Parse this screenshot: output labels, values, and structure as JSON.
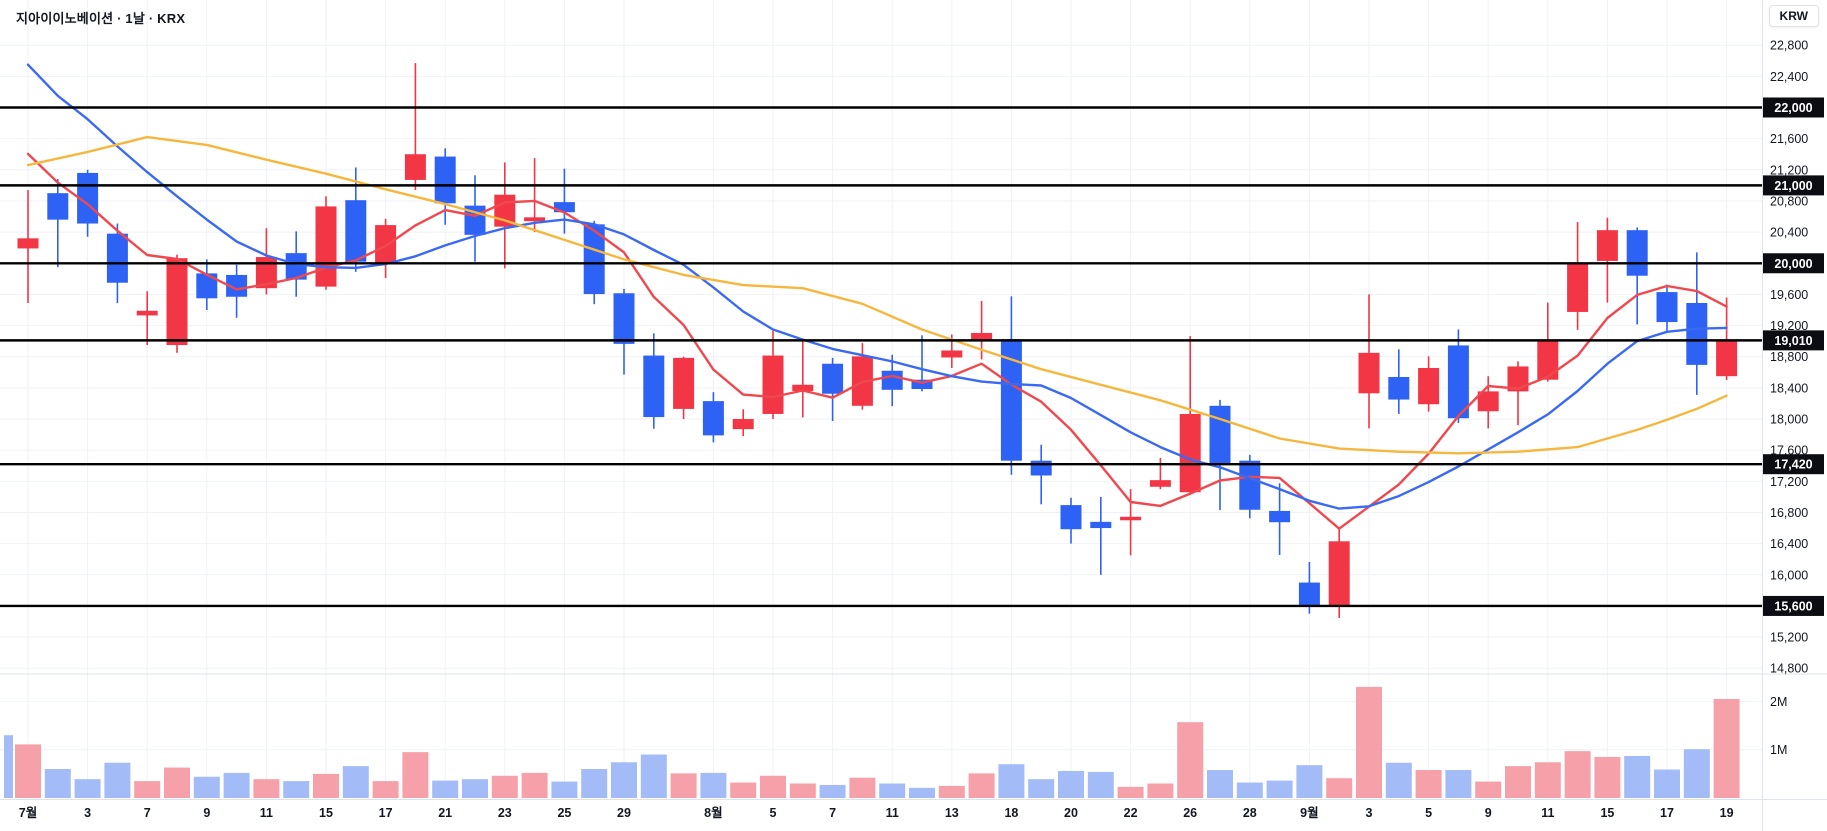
{
  "header": {
    "title": "지아이이노베이션 · 1날 · KRX"
  },
  "axis": {
    "currency_badge": "KRW",
    "price_labels": [
      {
        "value": 22800,
        "label": "22,800",
        "badge": false
      },
      {
        "value": 22400,
        "label": "22,400",
        "badge": false
      },
      {
        "value": 22000,
        "label": "22,000",
        "badge": true
      },
      {
        "value": 21600,
        "label": "21,600",
        "badge": false
      },
      {
        "value": 21200,
        "label": "21,200",
        "badge": false
      },
      {
        "value": 21000,
        "label": "21,000",
        "badge": true
      },
      {
        "value": 20800,
        "label": "20,800",
        "badge": false
      },
      {
        "value": 20400,
        "label": "20,400",
        "badge": false
      },
      {
        "value": 20000,
        "label": "20,000",
        "badge": true
      },
      {
        "value": 19600,
        "label": "19,600",
        "badge": false
      },
      {
        "value": 19200,
        "label": "19,200",
        "badge": false
      },
      {
        "value": 19010,
        "label": "19,010",
        "badge": true
      },
      {
        "value": 18800,
        "label": "18,800",
        "badge": false
      },
      {
        "value": 18400,
        "label": "18,400",
        "badge": false
      },
      {
        "value": 18000,
        "label": "18,000",
        "badge": false
      },
      {
        "value": 17600,
        "label": "17,600",
        "badge": false
      },
      {
        "value": 17420,
        "label": "17,420",
        "badge": true
      },
      {
        "value": 17200,
        "label": "17,200",
        "badge": false
      },
      {
        "value": 16800,
        "label": "16,800",
        "badge": false
      },
      {
        "value": 16400,
        "label": "16,400",
        "badge": false
      },
      {
        "value": 16000,
        "label": "16,000",
        "badge": false
      },
      {
        "value": 15600,
        "label": "15,600",
        "badge": true
      },
      {
        "value": 15200,
        "label": "15,200",
        "badge": false
      },
      {
        "value": 14800,
        "label": "14,800",
        "badge": false
      }
    ],
    "volume_labels": [
      {
        "label": "2M",
        "value": 2
      },
      {
        "label": "1M",
        "value": 1
      }
    ]
  },
  "chart_data": {
    "type": "candlestick",
    "title": "지아이이노베이션 1날 KRX",
    "price_currency": "KRW",
    "horizontal_levels": [
      22000,
      21000,
      20000,
      19010,
      17420,
      15600
    ],
    "last_price": 19010,
    "x_ticks": [
      {
        "i": 0,
        "label": "7월"
      },
      {
        "i": 2,
        "label": "3"
      },
      {
        "i": 4,
        "label": "7"
      },
      {
        "i": 6,
        "label": "9"
      },
      {
        "i": 8,
        "label": "11"
      },
      {
        "i": 10,
        "label": "15"
      },
      {
        "i": 12,
        "label": "17"
      },
      {
        "i": 14,
        "label": "21"
      },
      {
        "i": 16,
        "label": "23"
      },
      {
        "i": 18,
        "label": "25"
      },
      {
        "i": 20,
        "label": "29"
      },
      {
        "i": 23,
        "label": "8월"
      },
      {
        "i": 25,
        "label": "5"
      },
      {
        "i": 27,
        "label": "7"
      },
      {
        "i": 29,
        "label": "11"
      },
      {
        "i": 31,
        "label": "13"
      },
      {
        "i": 33,
        "label": "18"
      },
      {
        "i": 35,
        "label": "20"
      },
      {
        "i": 37,
        "label": "22"
      },
      {
        "i": 39,
        "label": "26"
      },
      {
        "i": 41,
        "label": "28"
      },
      {
        "i": 43,
        "label": "9월"
      },
      {
        "i": 45,
        "label": "3"
      },
      {
        "i": 47,
        "label": "5"
      },
      {
        "i": 49,
        "label": "9"
      },
      {
        "i": 51,
        "label": "11"
      },
      {
        "i": 53,
        "label": "15"
      },
      {
        "i": 55,
        "label": "17"
      },
      {
        "i": 57,
        "label": "19"
      }
    ],
    "candles_format": [
      "open",
      "high",
      "low",
      "close",
      "volume_millions"
    ],
    "candles": [
      [
        20190,
        20940,
        19490,
        20320,
        1.11
      ],
      [
        20900,
        21080,
        19950,
        20560,
        0.6
      ],
      [
        21160,
        21200,
        20340,
        20510,
        0.39
      ],
      [
        20380,
        20510,
        19490,
        19750,
        0.73
      ],
      [
        19330,
        19640,
        18950,
        19390,
        0.35
      ],
      [
        18950,
        20110,
        18850,
        20065,
        0.63
      ],
      [
        19870,
        20050,
        19400,
        19550,
        0.44
      ],
      [
        19850,
        19980,
        19300,
        19570,
        0.52
      ],
      [
        19680,
        20450,
        19600,
        20080,
        0.39
      ],
      [
        20130,
        20410,
        19570,
        19790,
        0.35
      ],
      [
        19700,
        20860,
        19660,
        20730,
        0.5
      ],
      [
        20810,
        21230,
        19890,
        20020,
        0.66
      ],
      [
        19990,
        20570,
        19810,
        20490,
        0.35
      ],
      [
        21070,
        22570,
        20940,
        21400,
        0.95
      ],
      [
        21370,
        21475,
        20495,
        20770,
        0.36
      ],
      [
        20740,
        21130,
        20020,
        20365,
        0.39
      ],
      [
        20470,
        21295,
        19935,
        20880,
        0.46
      ],
      [
        20540,
        21350,
        20400,
        20590,
        0.52
      ],
      [
        20785,
        21215,
        20380,
        20655,
        0.34
      ],
      [
        20500,
        20545,
        19475,
        19605,
        0.6
      ],
      [
        19615,
        19670,
        18570,
        18965,
        0.74
      ],
      [
        18815,
        19100,
        17875,
        18025,
        0.9
      ],
      [
        18130,
        18800,
        18000,
        18785,
        0.51
      ],
      [
        18230,
        18345,
        17700,
        17790,
        0.52
      ],
      [
        17870,
        18125,
        17780,
        18000,
        0.32
      ],
      [
        18065,
        19135,
        18000,
        18815,
        0.46
      ],
      [
        18360,
        19000,
        18020,
        18440,
        0.3
      ],
      [
        18710,
        18785,
        17975,
        18325,
        0.27
      ],
      [
        18170,
        18975,
        18120,
        18805,
        0.42
      ],
      [
        18620,
        18825,
        18165,
        18375,
        0.3
      ],
      [
        18505,
        19075,
        18355,
        18385,
        0.21
      ],
      [
        18790,
        19085,
        18655,
        18880,
        0.25
      ],
      [
        19000,
        19515,
        18765,
        19105,
        0.51
      ],
      [
        19025,
        19575,
        17285,
        17465,
        0.7
      ],
      [
        17465,
        17670,
        16905,
        17275,
        0.39
      ],
      [
        16895,
        16990,
        16400,
        16585,
        0.56
      ],
      [
        16680,
        17000,
        16000,
        16600,
        0.54
      ],
      [
        16700,
        17100,
        16250,
        16745,
        0.23
      ],
      [
        17130,
        17500,
        17100,
        17215,
        0.3
      ],
      [
        17060,
        19065,
        17025,
        18065,
        1.57
      ],
      [
        18170,
        18245,
        16830,
        17430,
        0.58
      ],
      [
        17465,
        17540,
        16725,
        16835,
        0.32
      ],
      [
        16820,
        17175,
        16255,
        16675,
        0.36
      ],
      [
        15900,
        16165,
        15500,
        15590,
        0.68
      ],
      [
        15590,
        16595,
        15445,
        16430,
        0.41
      ],
      [
        18330,
        19600,
        17880,
        18850,
        2.3
      ],
      [
        18540,
        18895,
        18065,
        18250,
        0.73
      ],
      [
        18190,
        18805,
        18095,
        18655,
        0.58
      ],
      [
        18945,
        19150,
        17950,
        18010,
        0.58
      ],
      [
        18100,
        18550,
        17880,
        18355,
        0.34
      ],
      [
        18355,
        18740,
        17920,
        18675,
        0.66
      ],
      [
        18505,
        19495,
        18480,
        19020,
        0.74
      ],
      [
        19375,
        20530,
        19145,
        20010,
        0.97
      ],
      [
        20030,
        20585,
        19495,
        20425,
        0.85
      ],
      [
        20425,
        20460,
        19215,
        19840,
        0.87
      ],
      [
        19630,
        19725,
        19115,
        19245,
        0.59
      ],
      [
        19490,
        20140,
        18310,
        18695,
        1.01
      ],
      [
        18550,
        19560,
        18500,
        19010,
        2.05
      ]
    ],
    "prev_clipped_volume": {
      "volume_millions": 1.3,
      "direction": "down"
    },
    "moving_averages": [
      {
        "name": "ma-fast-red",
        "color": "#f0484f",
        "type": "sma5_from_closes",
        "seed_closes": [
          22400,
          21900,
          21450,
          20950
        ]
      },
      {
        "name": "ma-mid-blue",
        "color": "#3b6af2",
        "points": [
          [
            0,
            22550
          ],
          [
            1,
            22150
          ],
          [
            2,
            21850
          ],
          [
            3,
            21500
          ],
          [
            4,
            21170
          ],
          [
            5,
            20860
          ],
          [
            6,
            20560
          ],
          [
            7,
            20280
          ],
          [
            8,
            20100
          ],
          [
            9,
            19990
          ],
          [
            10,
            19950
          ],
          [
            11,
            19940
          ],
          [
            12,
            19990
          ],
          [
            13,
            20090
          ],
          [
            14,
            20230
          ],
          [
            15,
            20350
          ],
          [
            16,
            20450
          ],
          [
            17,
            20520
          ],
          [
            18,
            20560
          ],
          [
            19,
            20500
          ],
          [
            20,
            20370
          ],
          [
            21,
            20170
          ],
          [
            22,
            19980
          ],
          [
            23,
            19690
          ],
          [
            24,
            19380
          ],
          [
            25,
            19150
          ],
          [
            26,
            19020
          ],
          [
            27,
            18900
          ],
          [
            28,
            18820
          ],
          [
            29,
            18740
          ],
          [
            30,
            18640
          ],
          [
            31,
            18550
          ],
          [
            32,
            18480
          ],
          [
            33,
            18450
          ],
          [
            34,
            18430
          ],
          [
            35,
            18270
          ],
          [
            36,
            18050
          ],
          [
            37,
            17830
          ],
          [
            38,
            17640
          ],
          [
            39,
            17480
          ],
          [
            40,
            17380
          ],
          [
            41,
            17240
          ],
          [
            42,
            17100
          ],
          [
            43,
            16950
          ],
          [
            44,
            16850
          ],
          [
            45,
            16880
          ],
          [
            46,
            17010
          ],
          [
            47,
            17190
          ],
          [
            48,
            17390
          ],
          [
            49,
            17610
          ],
          [
            50,
            17830
          ],
          [
            51,
            18060
          ],
          [
            52,
            18360
          ],
          [
            53,
            18710
          ],
          [
            54,
            19000
          ],
          [
            55,
            19120
          ],
          [
            56,
            19160
          ],
          [
            57,
            19170
          ]
        ]
      },
      {
        "name": "ma-slow-yellow",
        "color": "#f5b73d",
        "points": [
          [
            0,
            21260
          ],
          [
            2,
            21430
          ],
          [
            4,
            21620
          ],
          [
            6,
            21520
          ],
          [
            8,
            21330
          ],
          [
            10,
            21150
          ],
          [
            12,
            20950
          ],
          [
            14,
            20760
          ],
          [
            16,
            20550
          ],
          [
            18,
            20300
          ],
          [
            20,
            20050
          ],
          [
            22,
            19850
          ],
          [
            24,
            19720
          ],
          [
            26,
            19680
          ],
          [
            28,
            19480
          ],
          [
            30,
            19150
          ],
          [
            32,
            18890
          ],
          [
            34,
            18640
          ],
          [
            36,
            18440
          ],
          [
            38,
            18240
          ],
          [
            40,
            18000
          ],
          [
            42,
            17750
          ],
          [
            44,
            17620
          ],
          [
            46,
            17580
          ],
          [
            48,
            17560
          ],
          [
            50,
            17580
          ],
          [
            52,
            17640
          ],
          [
            54,
            17860
          ],
          [
            55,
            17990
          ],
          [
            56,
            18130
          ],
          [
            57,
            18300
          ]
        ]
      }
    ],
    "ylim_price_pane": [
      14550,
      23430
    ],
    "volume_axis_millions": [
      1,
      2
    ],
    "grid": true,
    "legend_position": "none"
  },
  "colors": {
    "up_candle": "#f23645",
    "down_candle": "#2e62f4",
    "up_volume": "#f6a1a9",
    "down_volume": "#a3bcf8",
    "level_line": "#000000",
    "badge_bg": "#0c0d12",
    "badge_text": "#ffffff",
    "axis_text": "#131722",
    "grid_line": "#f0f2f8",
    "separator": "#e0e3eb"
  }
}
